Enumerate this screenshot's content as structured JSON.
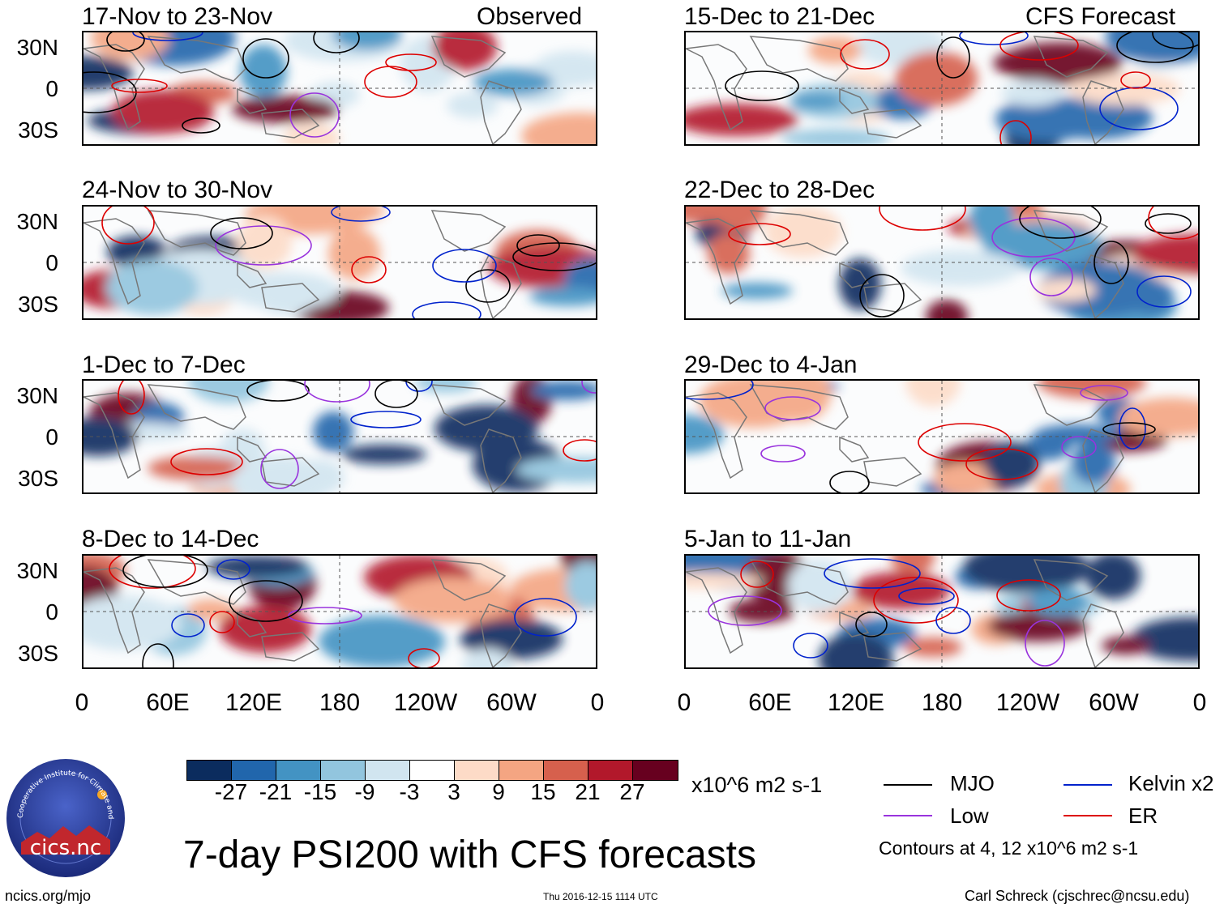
{
  "panels_left": [
    {
      "title": "17-Nov to 23-Nov",
      "label": "Observed"
    },
    {
      "title": "24-Nov to 30-Nov",
      "label": ""
    },
    {
      "title": "1-Dec to 7-Dec",
      "label": ""
    },
    {
      "title": "8-Dec to 14-Dec",
      "label": ""
    }
  ],
  "panels_right": [
    {
      "title": "15-Dec to 21-Dec",
      "label": "CFS Forecast"
    },
    {
      "title": "22-Dec to 28-Dec",
      "label": ""
    },
    {
      "title": "29-Dec to 4-Jan",
      "label": ""
    },
    {
      "title": "5-Jan to 11-Jan",
      "label": ""
    }
  ],
  "y_ticks": [
    "30N",
    "0",
    "30S"
  ],
  "x_ticks": [
    "0",
    "60E",
    "120E",
    "180",
    "120W",
    "60W",
    "0"
  ],
  "colorbar": {
    "levels": [
      "-27",
      "-21",
      "-15",
      "-9",
      "-3",
      "3",
      "9",
      "15",
      "21",
      "27"
    ],
    "colors": [
      "#0b2c5e",
      "#2166ac",
      "#4393c3",
      "#92c5de",
      "#d1e5f0",
      "#ffffff",
      "#fddbc7",
      "#f4a582",
      "#d6604d",
      "#b2182b",
      "#67001f"
    ],
    "units": "x10^6 m2 s-1"
  },
  "legend": {
    "mjo": "MJO",
    "kelvin": "Kelvin x2",
    "low": "Low",
    "er": "ER",
    "colors": {
      "mjo": "#000000",
      "kelvin": "#0022cc",
      "low": "#9933dd",
      "er": "#dd0000"
    },
    "contours_note": "Contours at 4, 12 x10^6 m2 s-1"
  },
  "logo": {
    "text": "cics.nc",
    "ring": "Cooperative Institute for Climate and Satellites"
  },
  "main_title": "7-day PSI200 with CFS forecasts",
  "footer": {
    "url": "ncics.org/mjo",
    "timestamp": "Thu 2016-12-15 1114 UTC",
    "author": "Carl Schreck (cjschrec@ncsu.edu)"
  }
}
